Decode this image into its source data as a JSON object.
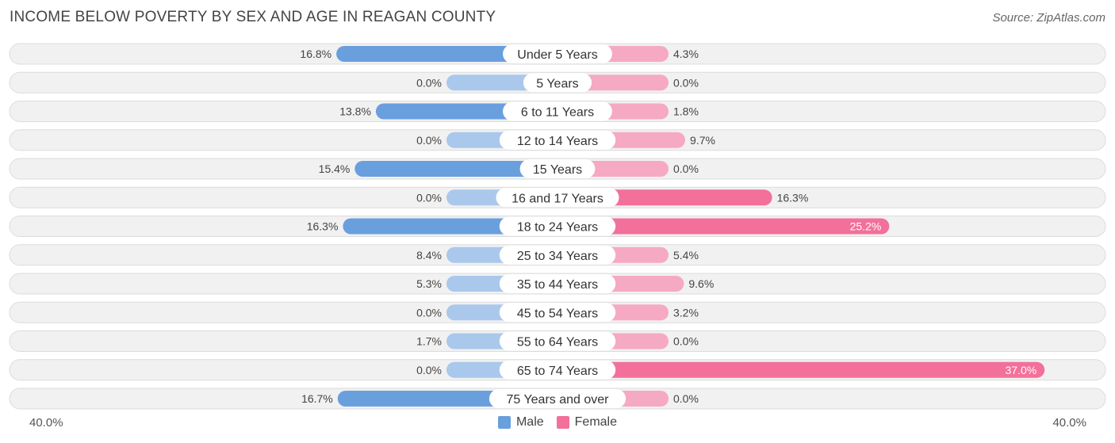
{
  "title": "INCOME BELOW POVERTY BY SEX AND AGE IN REAGAN COUNTY",
  "source": "Source: ZipAtlas.com",
  "colors": {
    "male_strong": "#6a9fdd",
    "male_light": "#a9c8ec",
    "female_strong": "#f2709a",
    "female_light": "#f6a9c2",
    "row_bg": "#f1f1f1",
    "row_border": "#dcdcdc"
  },
  "legend": {
    "male_label": "Male",
    "female_label": "Female"
  },
  "axis": {
    "left_label": "40.0%",
    "right_label": "40.0%"
  },
  "chart_data": {
    "type": "bar",
    "orientation": "horizontal-diverging",
    "title": "INCOME BELOW POVERTY BY SEX AND AGE IN REAGAN COUNTY",
    "xlim": [
      -40,
      40
    ],
    "categories": [
      "Under 5 Years",
      "5 Years",
      "6 to 11 Years",
      "12 to 14 Years",
      "15 Years",
      "16 and 17 Years",
      "18 to 24 Years",
      "25 to 34 Years",
      "35 to 44 Years",
      "45 to 54 Years",
      "55 to 64 Years",
      "65 to 74 Years",
      "75 Years and over"
    ],
    "series": [
      {
        "name": "Male",
        "values": [
          16.8,
          0.0,
          13.8,
          0.0,
          15.4,
          0.0,
          16.3,
          8.4,
          5.3,
          0.0,
          1.7,
          0.0,
          16.7
        ],
        "labels": [
          "16.8%",
          "0.0%",
          "13.8%",
          "0.0%",
          "15.4%",
          "0.0%",
          "16.3%",
          "8.4%",
          "5.3%",
          "0.0%",
          "1.7%",
          "0.0%",
          "16.7%"
        ]
      },
      {
        "name": "Female",
        "values": [
          4.3,
          0.0,
          1.8,
          9.7,
          0.0,
          16.3,
          25.2,
          5.4,
          9.6,
          3.2,
          0.0,
          37.0,
          0.0
        ],
        "labels": [
          "4.3%",
          "0.0%",
          "1.8%",
          "9.7%",
          "0.0%",
          "16.3%",
          "25.2%",
          "5.4%",
          "9.6%",
          "3.2%",
          "0.0%",
          "37.0%",
          "0.0%"
        ]
      }
    ]
  }
}
